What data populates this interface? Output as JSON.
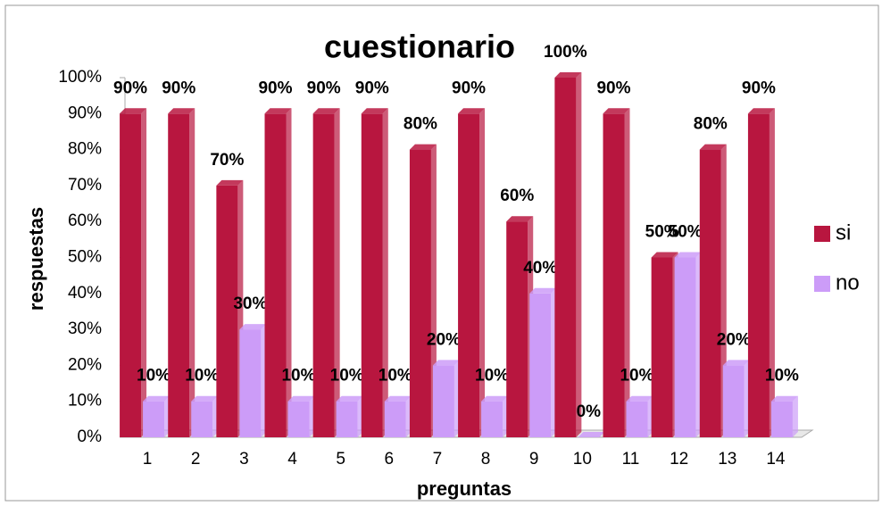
{
  "chart_data": {
    "type": "bar",
    "title": "cuestionario",
    "x_label": "preguntas",
    "y_label": "respuestas",
    "categories": [
      "1",
      "2",
      "3",
      "4",
      "5",
      "6",
      "7",
      "8",
      "9",
      "10",
      "11",
      "12",
      "13",
      "14"
    ],
    "series": [
      {
        "name": "si",
        "color": "#b8163f",
        "values": [
          90,
          90,
          70,
          90,
          90,
          90,
          80,
          90,
          60,
          100,
          90,
          50,
          80,
          90
        ],
        "value_labels": [
          "90%",
          "90%",
          "70%",
          "90%",
          "90%",
          "90%",
          "80%",
          "90%",
          "60%",
          "100%",
          "90%",
          "50%",
          "80%",
          "90%"
        ]
      },
      {
        "name": "no",
        "color": "#cc9cf8",
        "values": [
          10,
          10,
          30,
          10,
          10,
          10,
          20,
          10,
          40,
          0,
          10,
          50,
          20,
          10
        ],
        "value_labels": [
          "10%",
          "10%",
          "30%",
          "10%",
          "10%",
          "10%",
          "20%",
          "10%",
          "40%",
          "0%",
          "10%",
          "50%",
          "20%",
          "10%"
        ]
      }
    ],
    "ylim": [
      0,
      100
    ],
    "yticks": [
      {
        "value": 0,
        "label": "0%"
      },
      {
        "value": 10,
        "label": "10%"
      },
      {
        "value": 20,
        "label": "20%"
      },
      {
        "value": 30,
        "label": "30%"
      },
      {
        "value": 40,
        "label": "40%"
      },
      {
        "value": 50,
        "label": "50%"
      },
      {
        "value": 60,
        "label": "60%"
      },
      {
        "value": 70,
        "label": "70%"
      },
      {
        "value": 80,
        "label": "80%"
      },
      {
        "value": 90,
        "label": "90%"
      },
      {
        "value": 100,
        "label": "100%"
      }
    ],
    "legend": "right"
  }
}
